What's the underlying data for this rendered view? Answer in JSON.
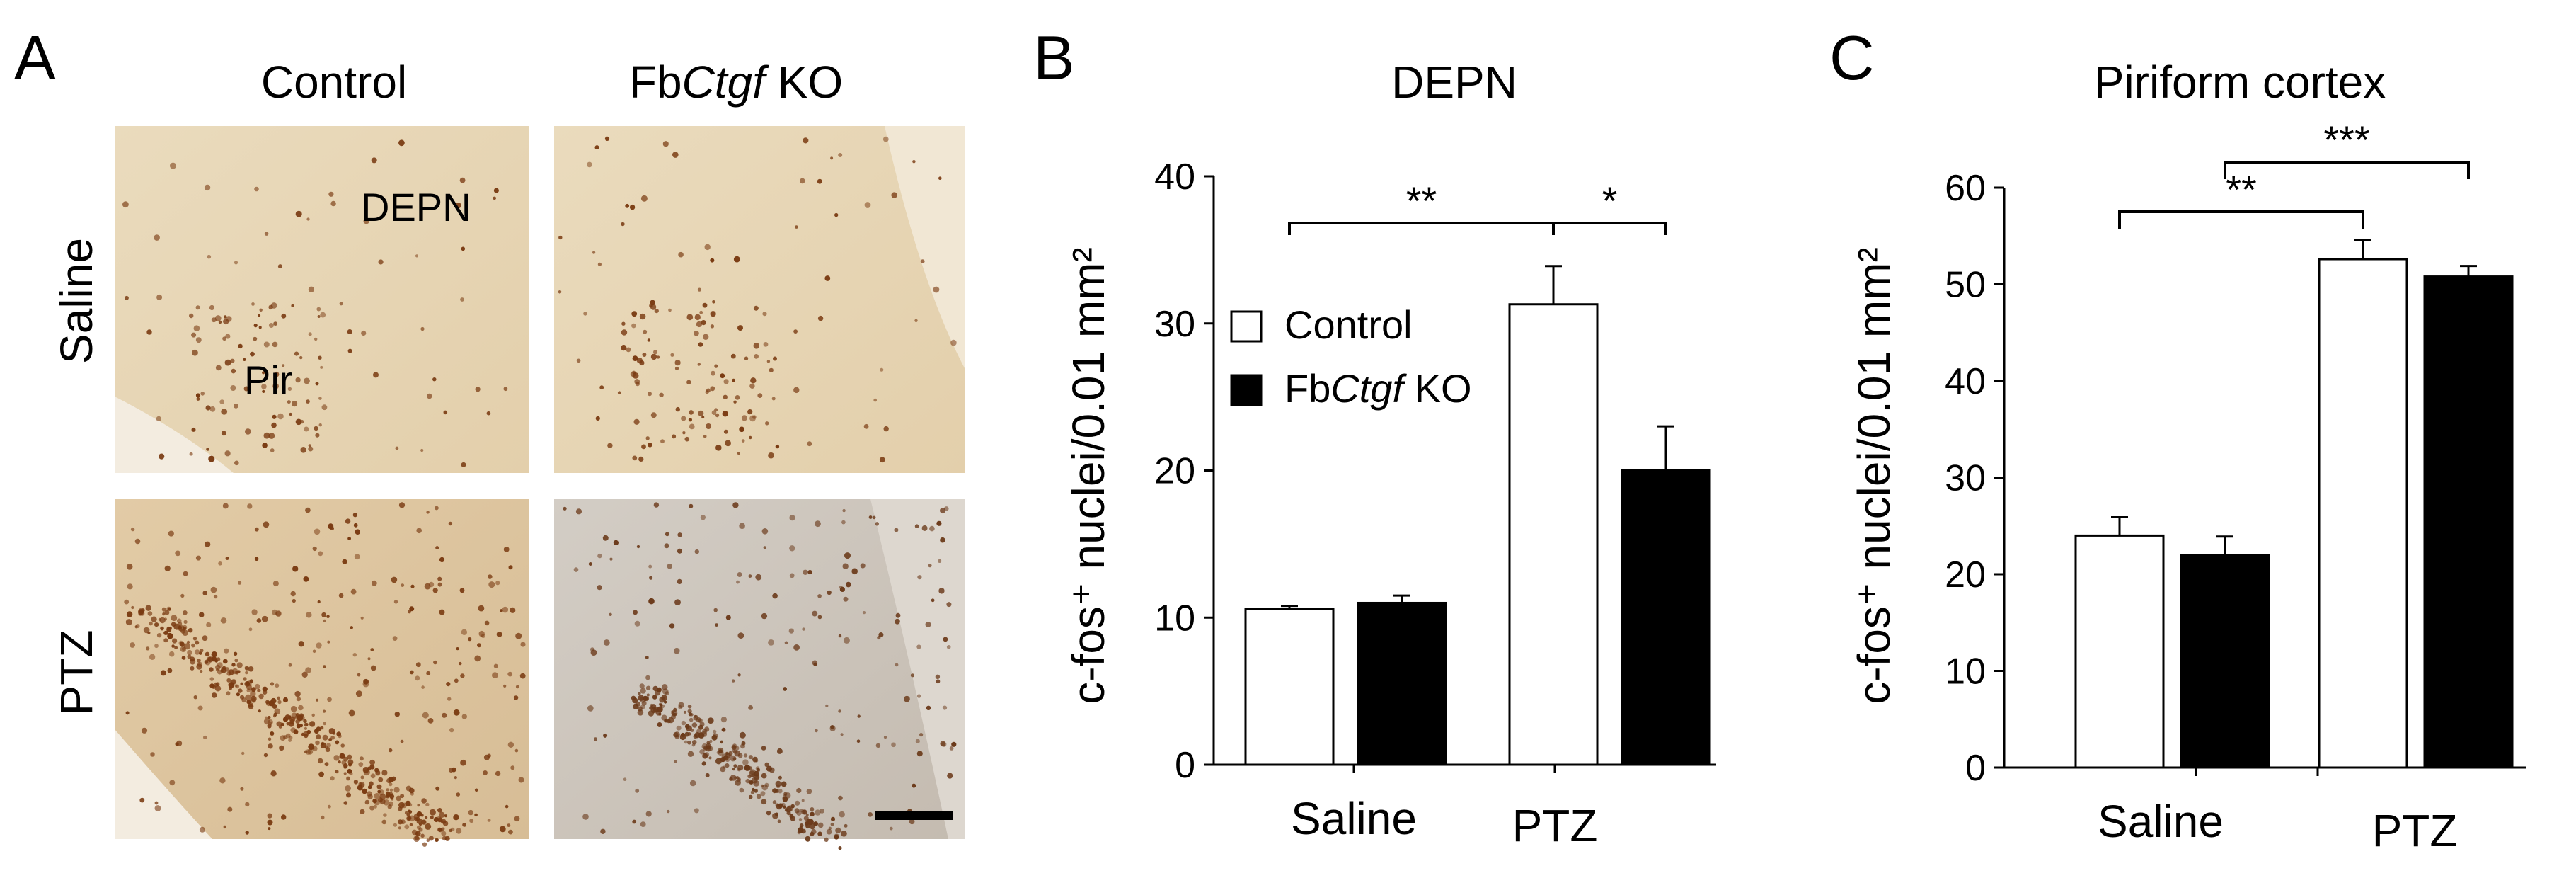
{
  "panel_a": {
    "letter": "A",
    "col_control": "Control",
    "col_ko_prefix": "Fb",
    "col_ko_gene": "Ctgf",
    "col_ko_suffix": " KO",
    "row_saline": "Saline",
    "row_ptz": "PTZ",
    "label_depn": "DEPN",
    "label_pir": "Pir",
    "tissue_colors": {
      "light_brown": "#e9d8b7",
      "brown": "#dcc3a0",
      "ko_ptz_gray": "#cdc6bd",
      "nucleus": "#7a3b12"
    }
  },
  "chart_data": [
    {
      "type": "bar",
      "panel": "B",
      "title": "DEPN",
      "ylabel": "c-fos⁺ nuclei/0.01 mm²",
      "xlabel": "",
      "categories": [
        "Saline",
        "PTZ"
      ],
      "ylim": [
        0,
        40
      ],
      "yticks": [
        0,
        10,
        20,
        30,
        40
      ],
      "grid": false,
      "legend_position": "center-left",
      "series": [
        {
          "name": "Control",
          "color": "#ffffff",
          "values": [
            10.6,
            31.3
          ],
          "errors": [
            0.2,
            2.6
          ]
        },
        {
          "name": "FbCtgf KO",
          "color": "#000000",
          "values": [
            11.0,
            20.0
          ],
          "errors": [
            0.5,
            3.0
          ]
        }
      ],
      "annotations": [
        {
          "text": "**",
          "from": "Saline Control",
          "to": "PTZ Control"
        },
        {
          "text": "*",
          "from": "PTZ Control",
          "to": "PTZ FbCtgf KO"
        }
      ]
    },
    {
      "type": "bar",
      "panel": "C",
      "title": "Piriform cortex",
      "ylabel": "c-fos⁺ nuclei/0.01 mm²",
      "xlabel": "",
      "categories": [
        "Saline",
        "PTZ"
      ],
      "ylim": [
        0,
        60
      ],
      "yticks": [
        0,
        10,
        20,
        30,
        40,
        50,
        60
      ],
      "grid": false,
      "series": [
        {
          "name": "Control",
          "color": "#ffffff",
          "values": [
            24.0,
            52.6
          ],
          "errors": [
            1.9,
            2.0
          ]
        },
        {
          "name": "FbCtgf KO",
          "color": "#000000",
          "values": [
            22.0,
            50.8
          ],
          "errors": [
            1.9,
            1.1
          ]
        }
      ],
      "annotations": [
        {
          "text": "**",
          "from": "Saline Control",
          "to": "PTZ Control"
        },
        {
          "text": "***",
          "from": "Saline FbCtgf KO",
          "to": "PTZ FbCtgf KO"
        }
      ]
    }
  ],
  "legend": {
    "control": "Control",
    "ko_prefix": "Fb",
    "ko_gene": "Ctgf",
    "ko_suffix": " KO"
  }
}
